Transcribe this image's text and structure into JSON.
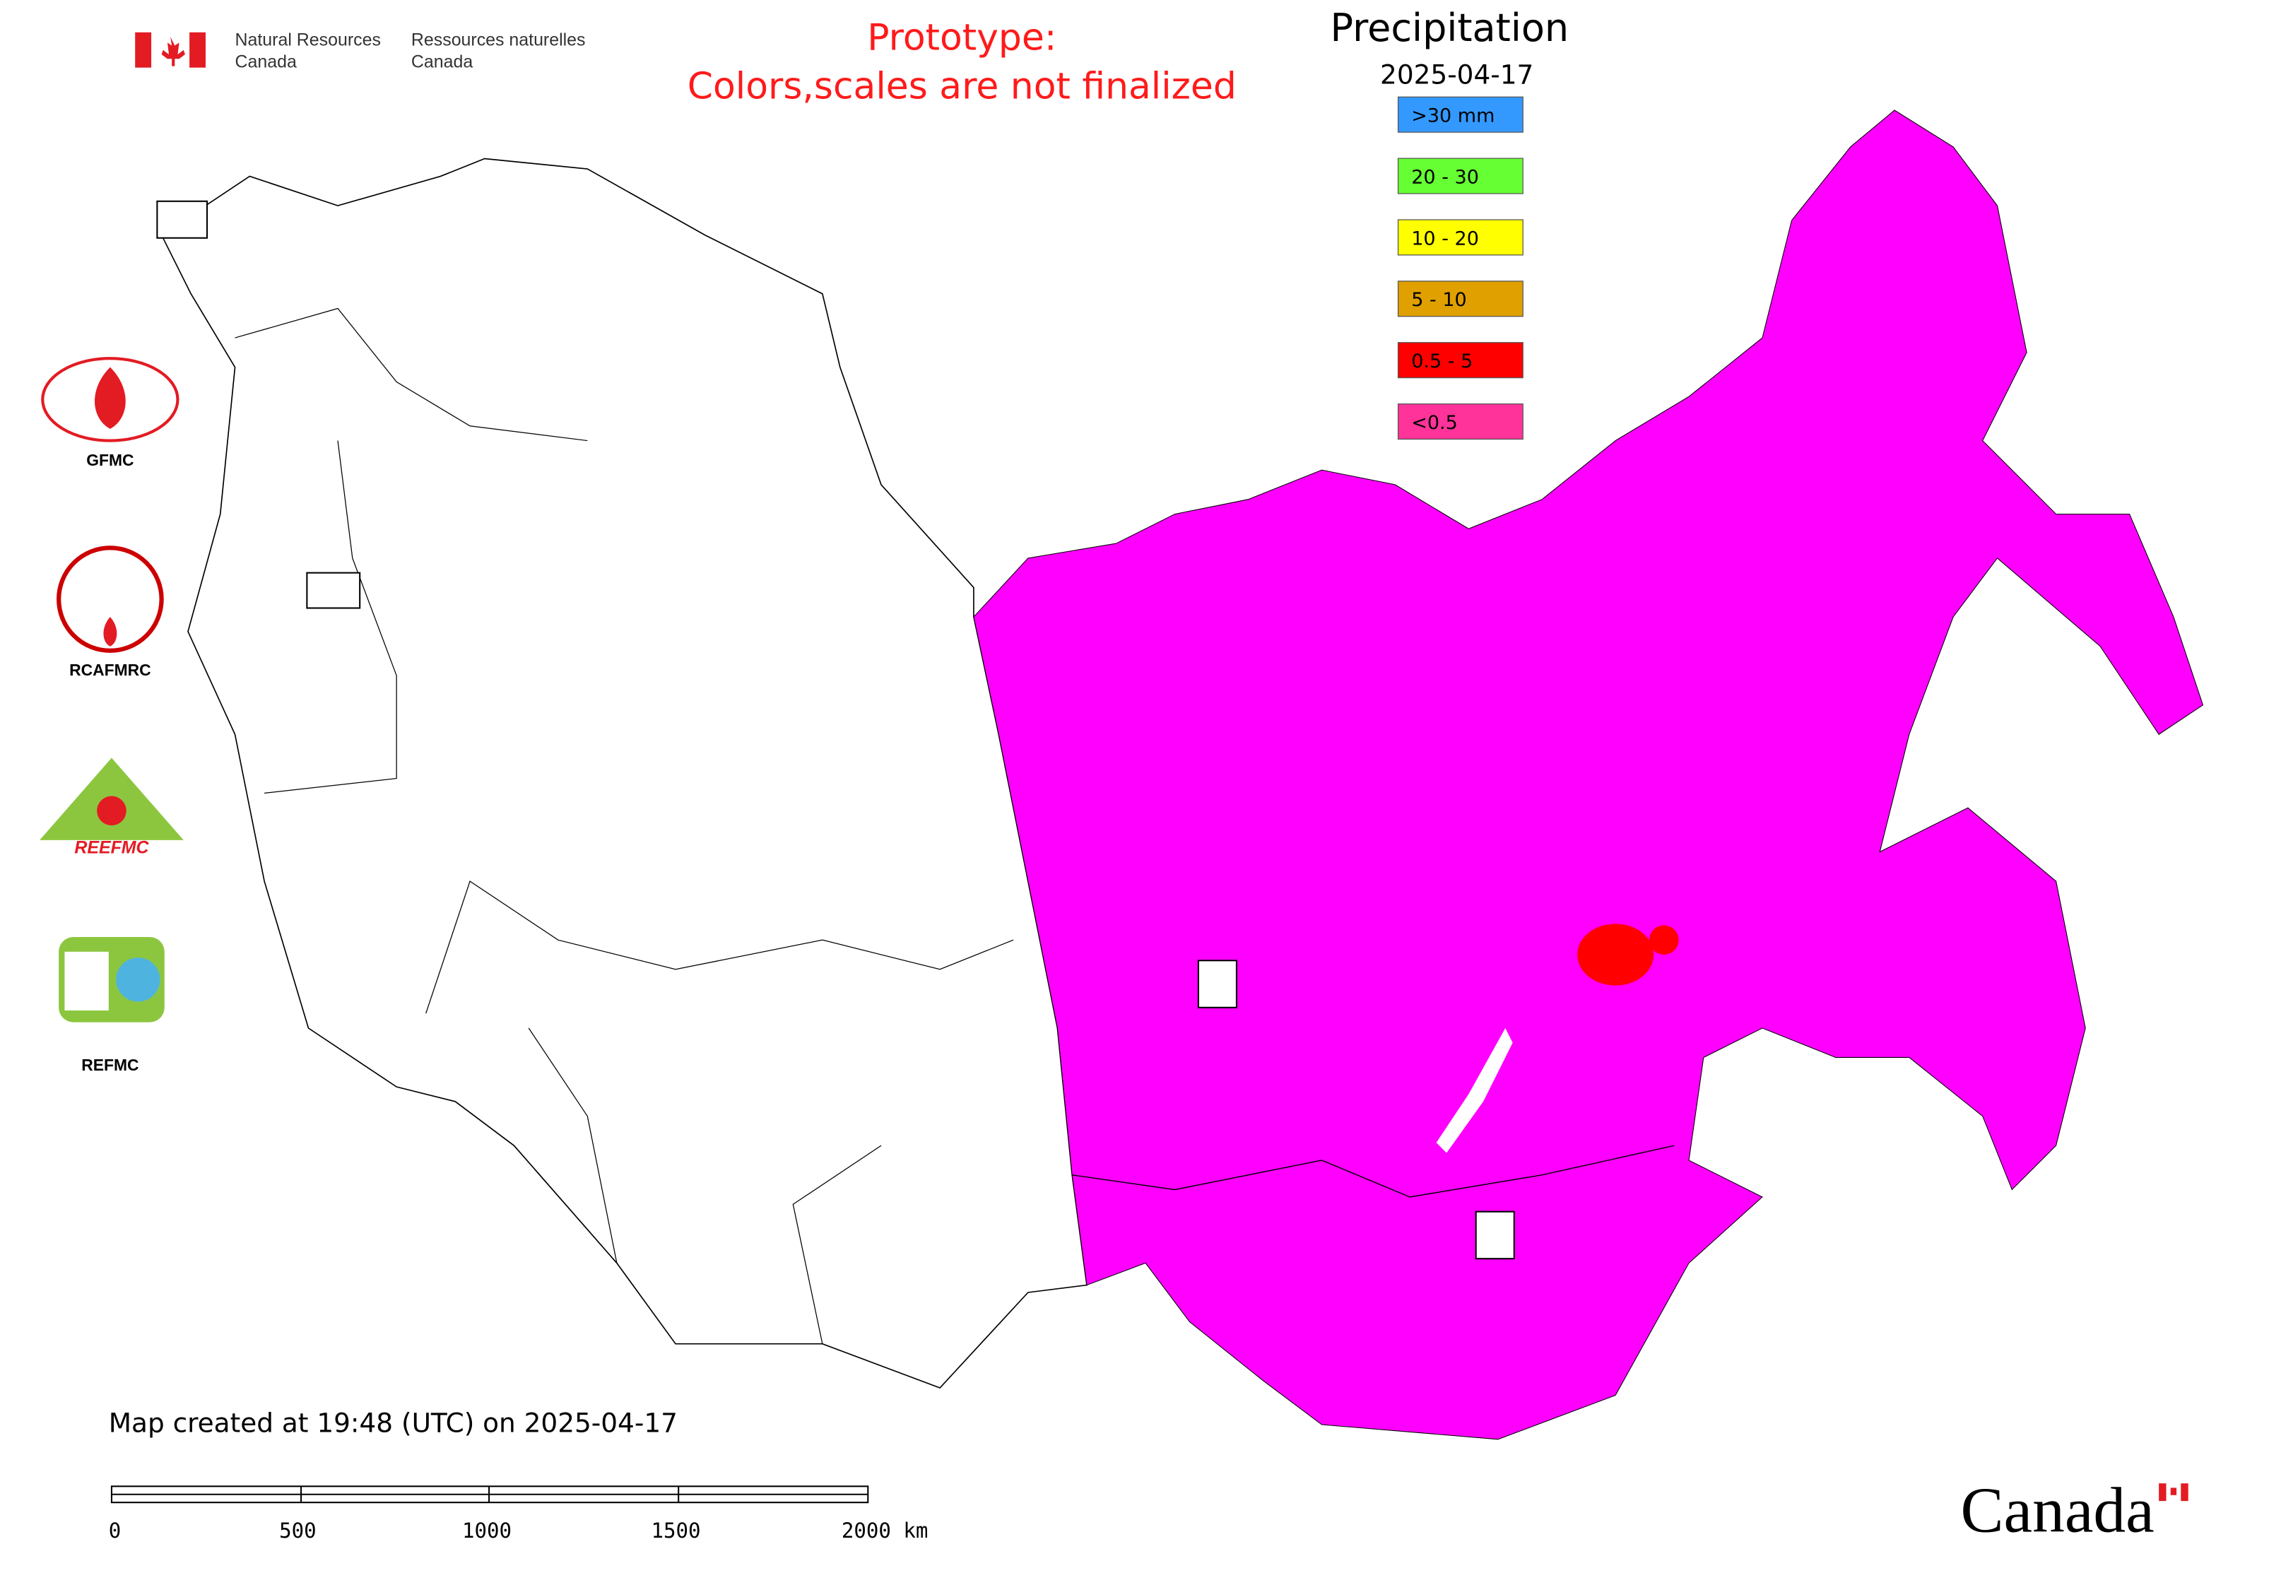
{
  "header": {
    "agency_en": [
      "Natural Resources",
      "Canada"
    ],
    "agency_fr": [
      "Ressources naturelles",
      "Canada"
    ],
    "notice": [
      "Prototype:",
      "Colors,scales are not finalized"
    ]
  },
  "legend": {
    "title": "Precipitation",
    "date": "2025-04-17",
    "items": [
      {
        "label": ">30 mm",
        "color": "#3399ff"
      },
      {
        "label": "20 - 30",
        "color": "#66ff33"
      },
      {
        "label": "10 - 20",
        "color": "#ffff00"
      },
      {
        "label": "5 - 10",
        "color": "#e0a000"
      },
      {
        "label": "0.5 - 5",
        "color": "#ff0000"
      },
      {
        "label": "<0.5",
        "color": "#ff3399"
      }
    ]
  },
  "logos": [
    {
      "label": "GFMC"
    },
    {
      "label": "RCAFMRC"
    },
    {
      "label": "REEFMC"
    },
    {
      "label": "REFMC"
    }
  ],
  "footer": {
    "created": "Map created at 19:48 (UTC) on 2025-04-17",
    "scale_ticks": [
      "0",
      "500",
      "1000",
      "1500",
      "2000 km"
    ],
    "wordmark": "Canada"
  }
}
